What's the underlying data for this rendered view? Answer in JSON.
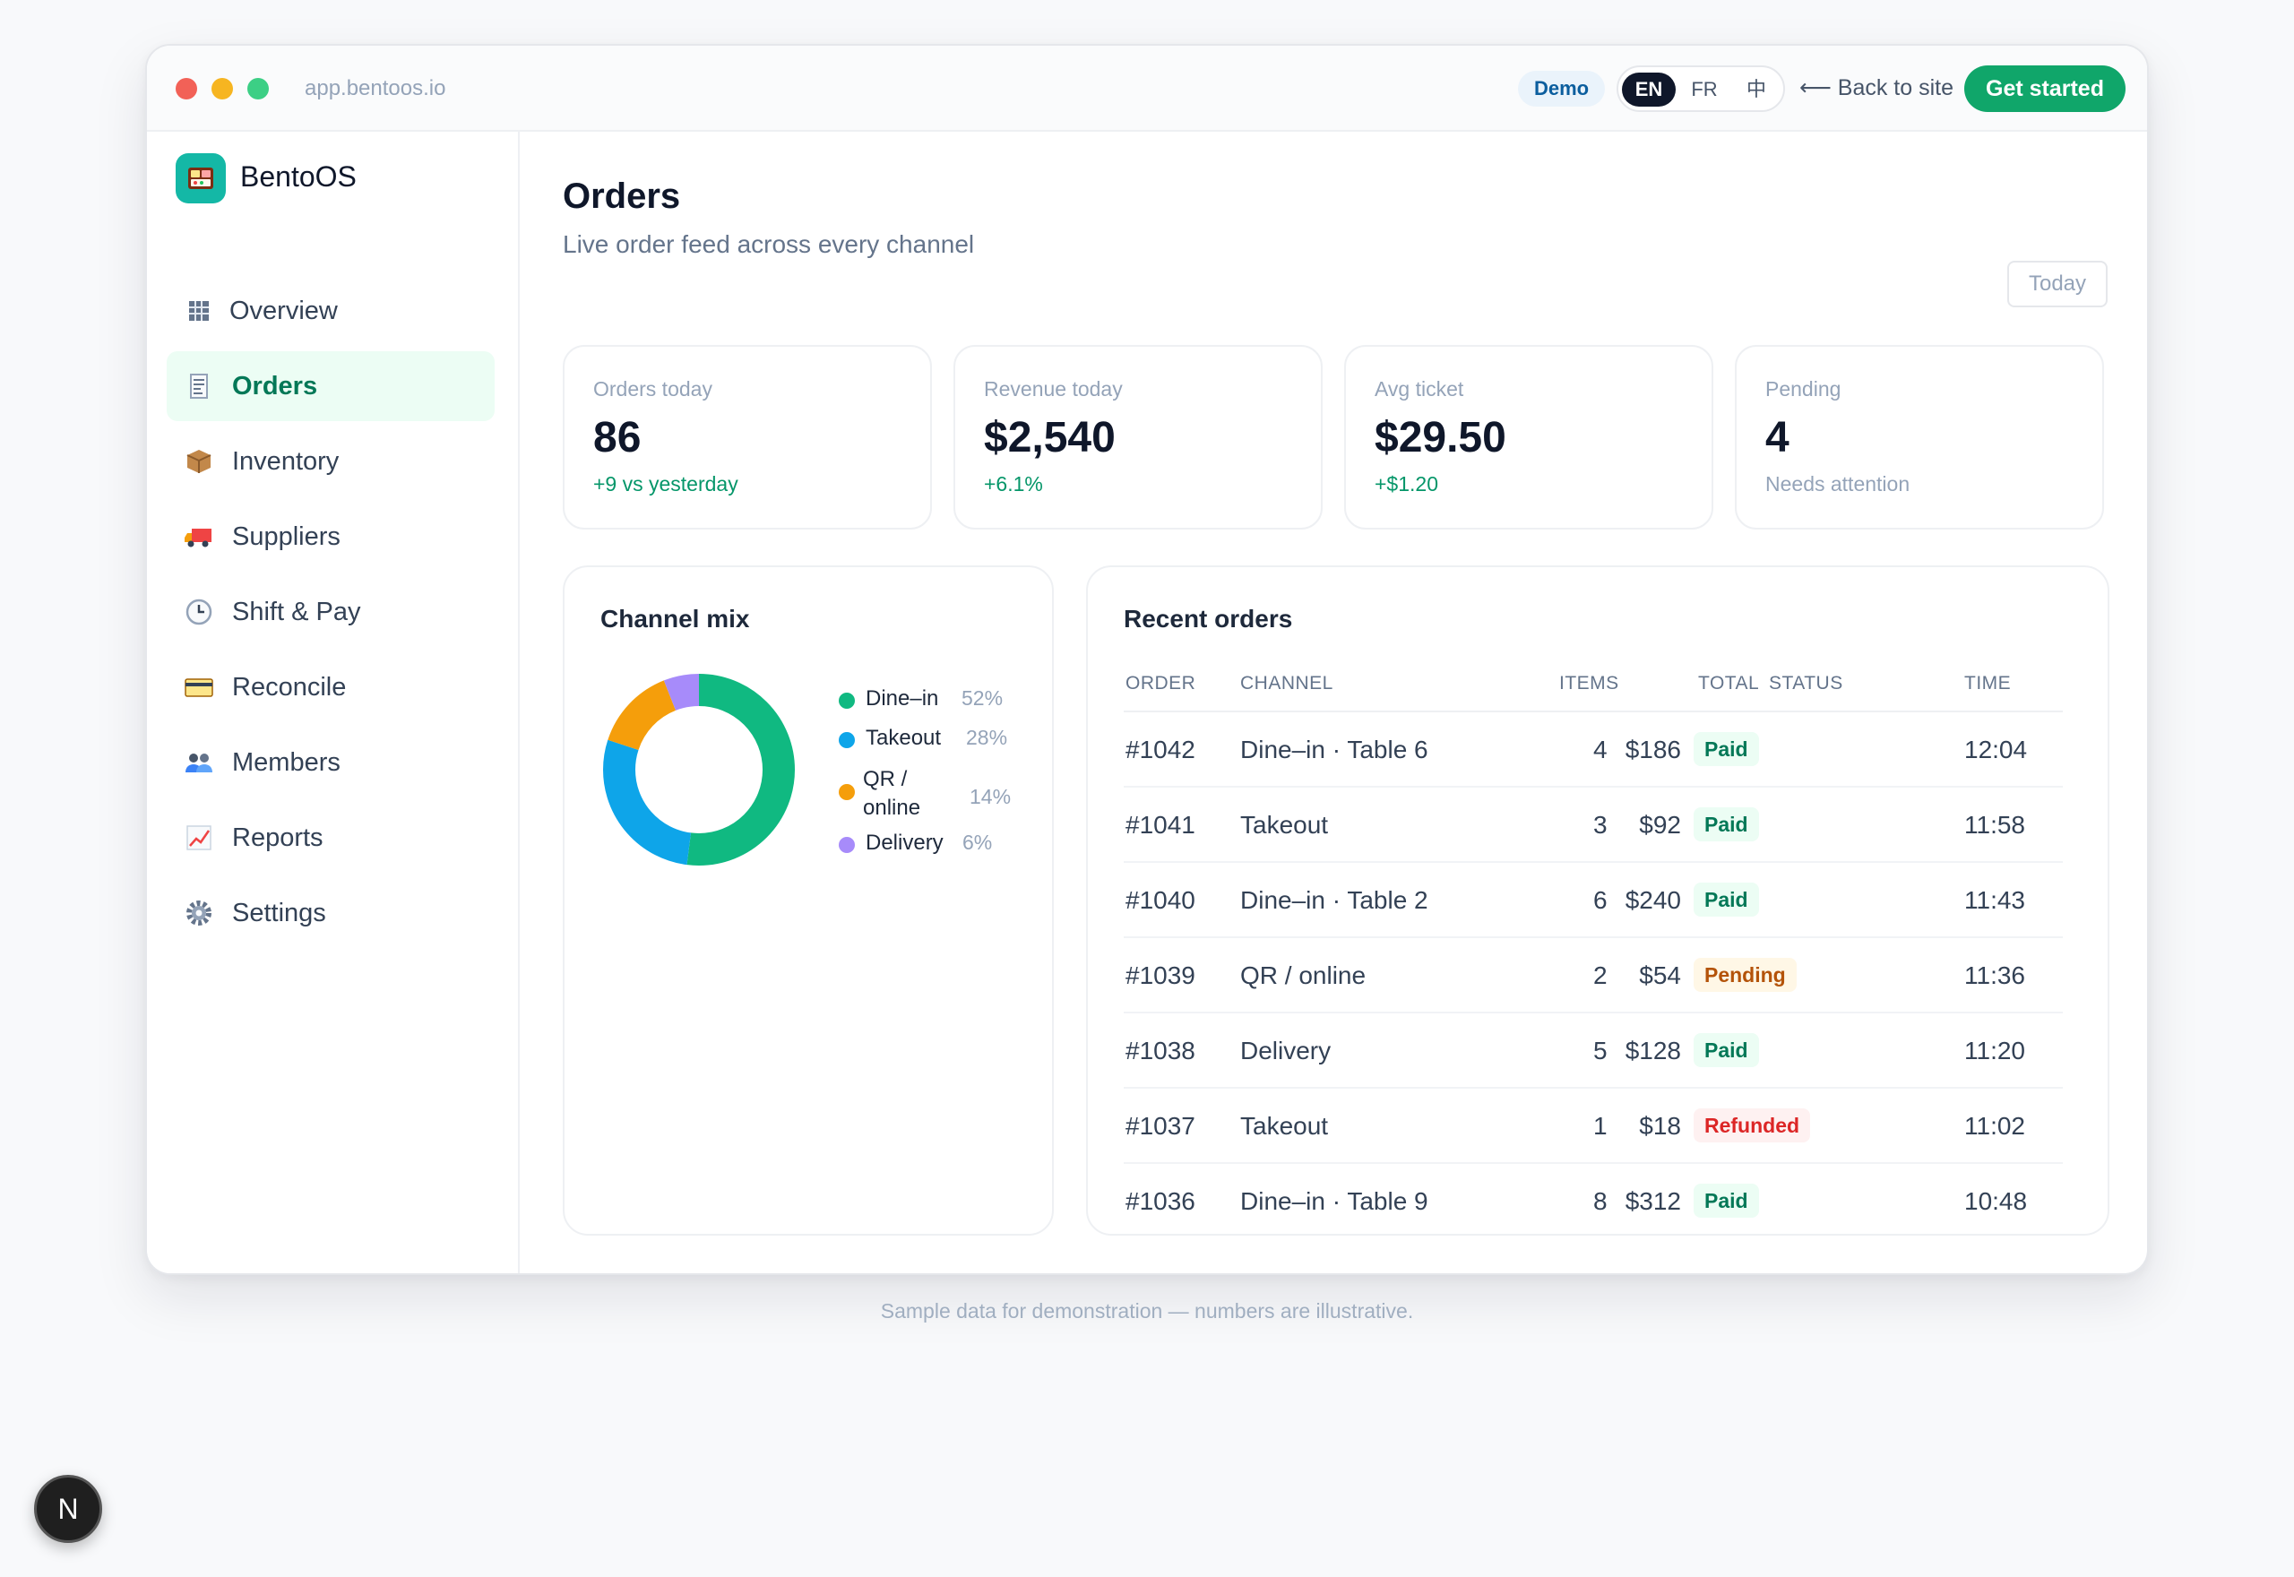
{
  "window": {
    "url": "app.bentoos.io",
    "demo_badge": "Demo",
    "languages": [
      "EN",
      "FR",
      "中"
    ],
    "back_link": "⟵ Back to site",
    "cta": "Get started"
  },
  "sidebar": {
    "brand": "BentoOS",
    "items": [
      {
        "label": "Overview",
        "icon": "grid-icon",
        "active": false
      },
      {
        "label": "Orders",
        "icon": "receipt-icon",
        "active": true
      },
      {
        "label": "Inventory",
        "icon": "package-icon",
        "active": false
      },
      {
        "label": "Suppliers",
        "icon": "truck-icon",
        "active": false
      },
      {
        "label": "Shift & Pay",
        "icon": "clock-icon",
        "active": false
      },
      {
        "label": "Reconcile",
        "icon": "card-icon",
        "active": false
      },
      {
        "label": "Members",
        "icon": "people-icon",
        "active": false
      },
      {
        "label": "Reports",
        "icon": "chart-icon",
        "active": false
      },
      {
        "label": "Settings",
        "icon": "gear-icon",
        "active": false
      }
    ]
  },
  "header": {
    "title": "Orders",
    "subtitle": "Live order feed across every channel",
    "range_button": "Today"
  },
  "stats": [
    {
      "label": "Orders today",
      "value": "86",
      "delta": "+9 vs yesterday",
      "tone": "positive"
    },
    {
      "label": "Revenue today",
      "value": "$2,540",
      "delta": "+6.1%",
      "tone": "positive"
    },
    {
      "label": "Avg ticket",
      "value": "$29.50",
      "delta": "+$1.20",
      "tone": "positive"
    },
    {
      "label": "Pending",
      "value": "4",
      "delta": "Needs attention",
      "tone": "neutral"
    }
  ],
  "channel_mix": {
    "title": "Channel mix",
    "slices": [
      {
        "name": "Dine–in",
        "pct_label": "52%",
        "value": 52,
        "color": "#10b981"
      },
      {
        "name": "Takeout",
        "pct_label": "28%",
        "value": 28,
        "color": "#0ea5e9"
      },
      {
        "name": "QR / online",
        "pct_label": "14%",
        "value": 14,
        "color": "#f59e0b"
      },
      {
        "name": "Delivery",
        "pct_label": "6%",
        "value": 6,
        "color": "#a78bfa"
      }
    ]
  },
  "recent_orders": {
    "title": "Recent orders",
    "columns": {
      "order": "ORDER",
      "channel": "CHANNEL",
      "items": "ITEMS",
      "total": "TOTAL",
      "status": "STATUS",
      "time": "TIME"
    },
    "rows": [
      {
        "order": "#1042",
        "channel": "Dine–in · Table 6",
        "items": "4",
        "total": "$186",
        "status": "Paid",
        "status_kind": "paid",
        "time": "12:04"
      },
      {
        "order": "#1041",
        "channel": "Takeout",
        "items": "3",
        "total": "$92",
        "status": "Paid",
        "status_kind": "paid",
        "time": "11:58"
      },
      {
        "order": "#1040",
        "channel": "Dine–in · Table 2",
        "items": "6",
        "total": "$240",
        "status": "Paid",
        "status_kind": "paid",
        "time": "11:43"
      },
      {
        "order": "#1039",
        "channel": "QR / online",
        "items": "2",
        "total": "$54",
        "status": "Pending",
        "status_kind": "pending",
        "time": "11:36"
      },
      {
        "order": "#1038",
        "channel": "Delivery",
        "items": "5",
        "total": "$128",
        "status": "Paid",
        "status_kind": "paid",
        "time": "11:20"
      },
      {
        "order": "#1037",
        "channel": "Takeout",
        "items": "1",
        "total": "$18",
        "status": "Refunded",
        "status_kind": "refunded",
        "time": "11:02"
      },
      {
        "order": "#1036",
        "channel": "Dine–in · Table 9",
        "items": "8",
        "total": "$312",
        "status": "Paid",
        "status_kind": "paid",
        "time": "10:48"
      }
    ]
  },
  "footnote": "Sample data for demonstration — numbers are illustrative.",
  "dev_badge": "N"
}
